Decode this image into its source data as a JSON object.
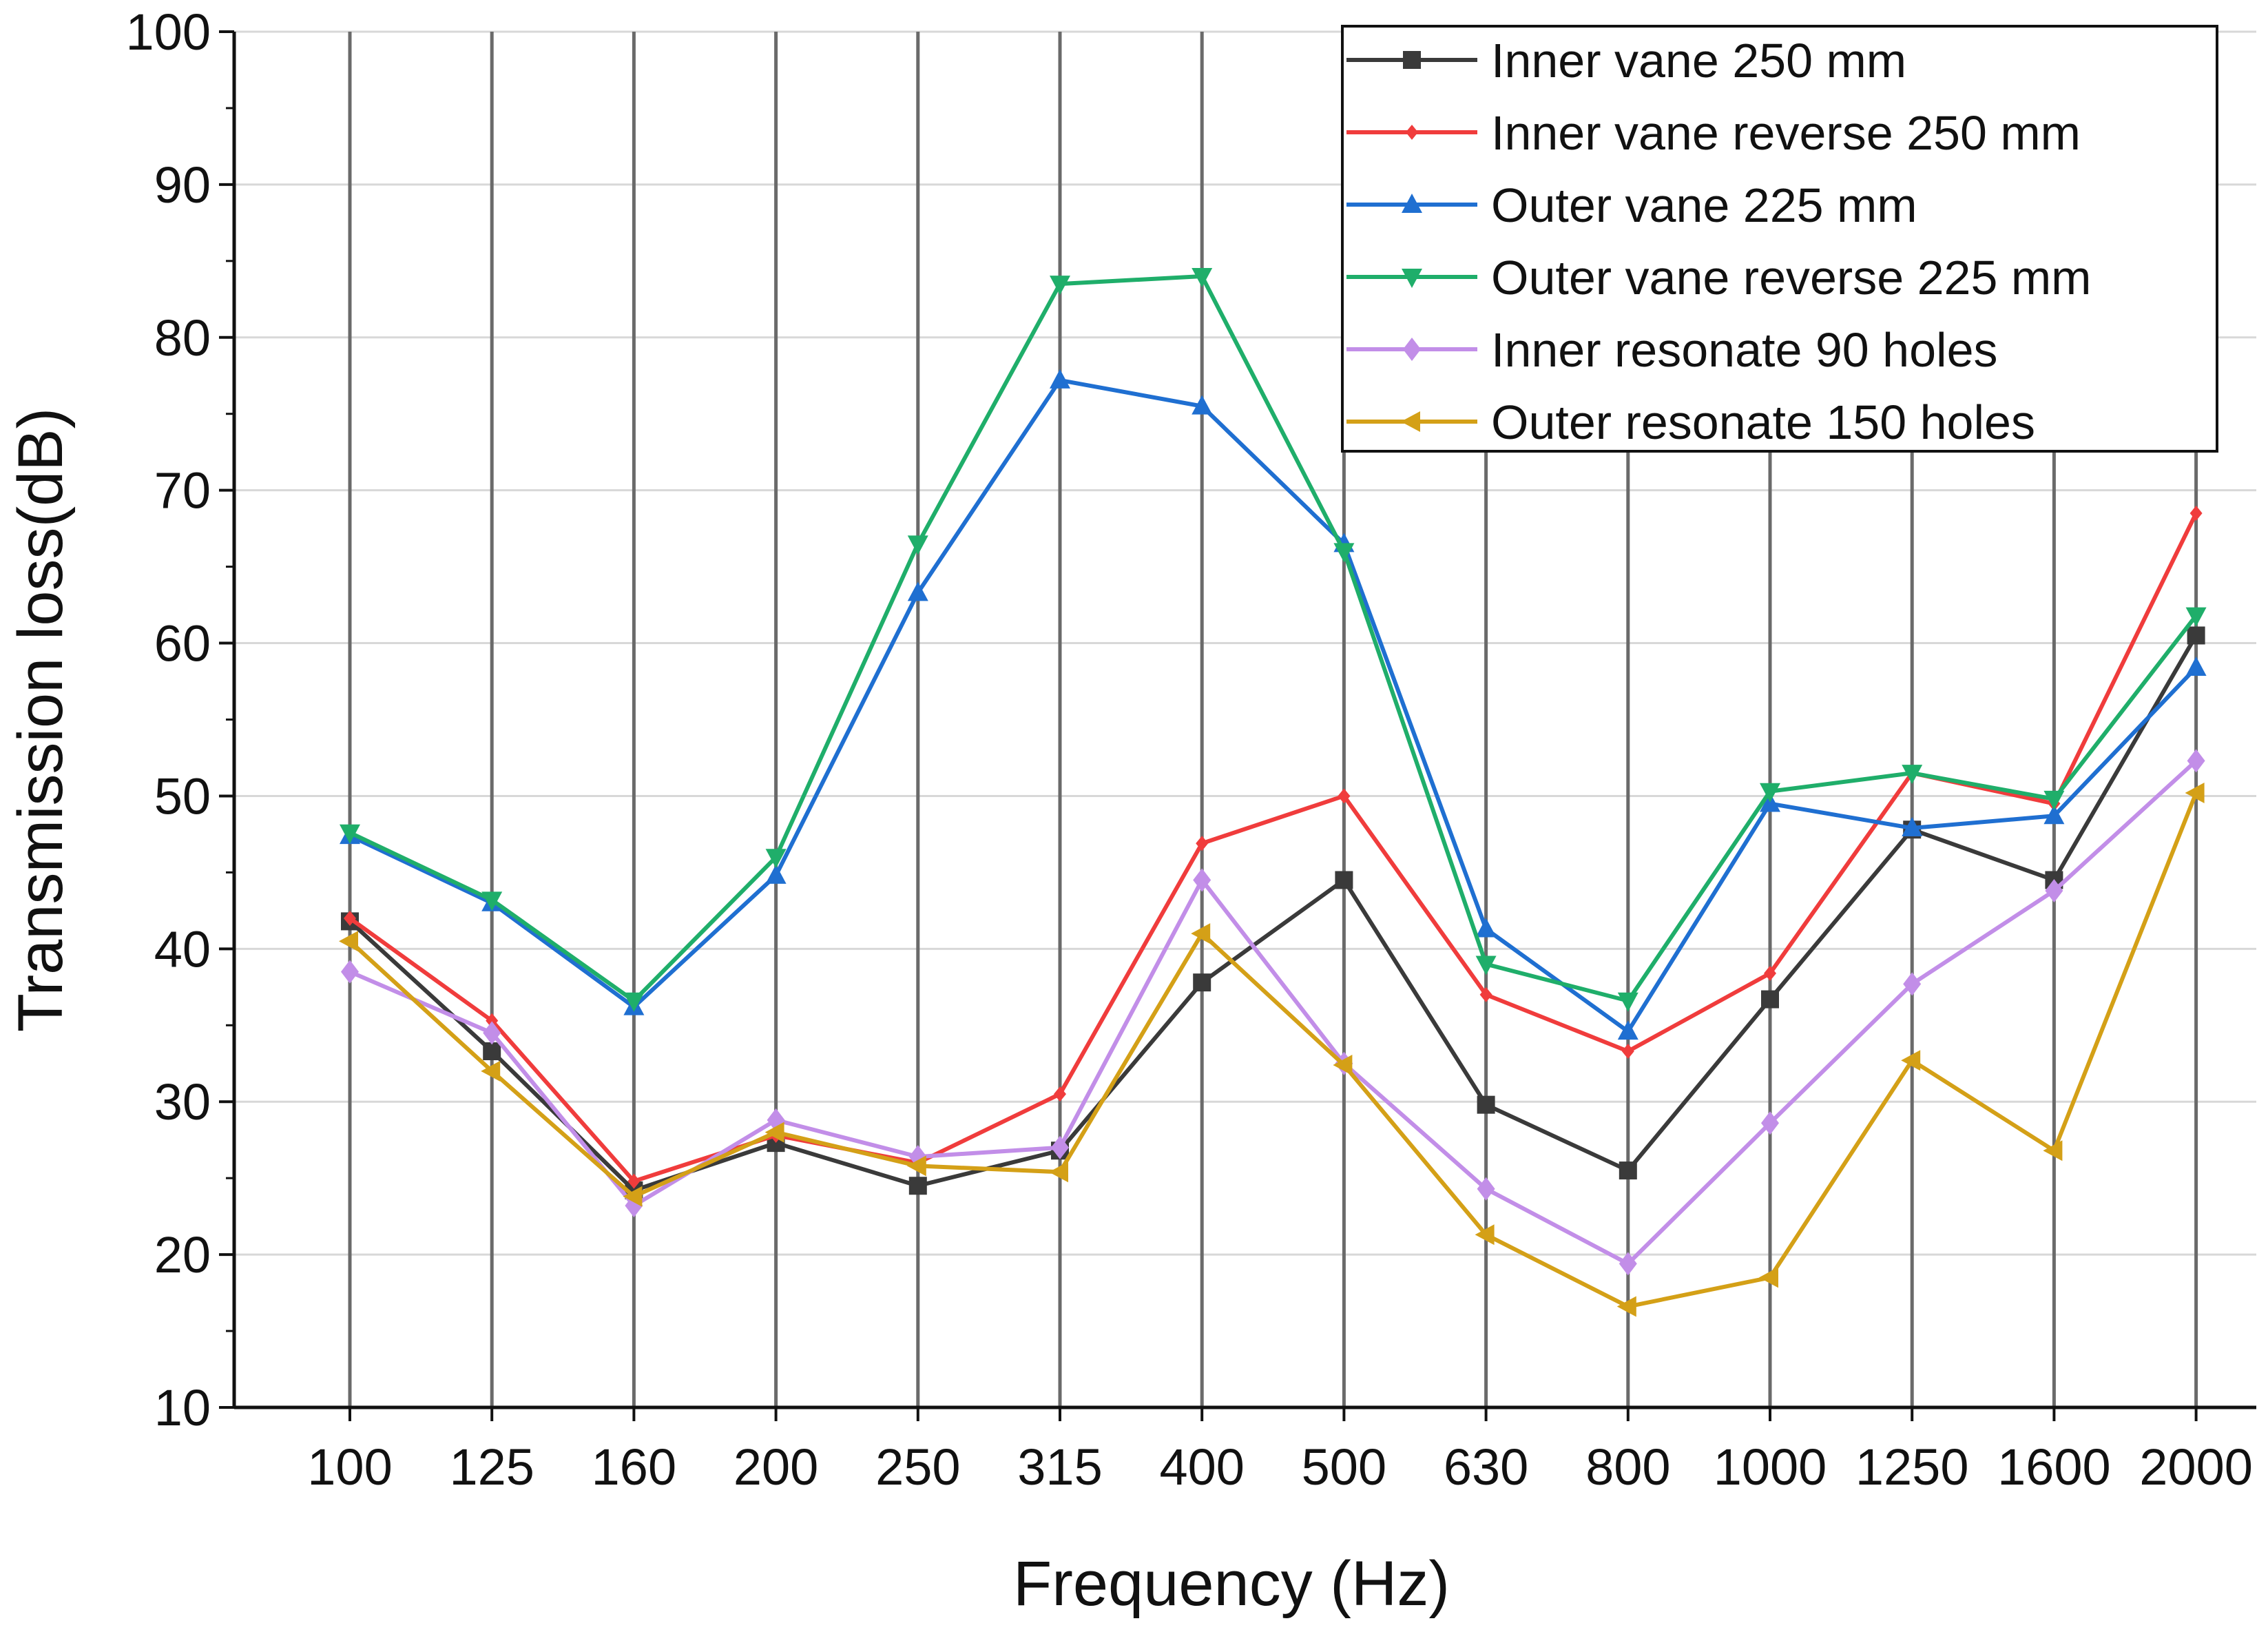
{
  "chart_data": {
    "type": "line",
    "title": "",
    "xlabel": "Frequency (Hz)",
    "ylabel": "Transmission loss(dB)",
    "ylim": [
      10,
      100
    ],
    "yticks": [
      "10",
      "20",
      "30",
      "40",
      "50",
      "60",
      "70",
      "80",
      "90",
      "100"
    ],
    "categories": [
      "100",
      "125",
      "160",
      "200",
      "250",
      "315",
      "400",
      "500",
      "630",
      "800",
      "1000",
      "1250",
      "1600",
      "2000"
    ],
    "grid": "vertical and horizontal",
    "legend_position": "top-right",
    "series": [
      {
        "name": "Inner vane 250 mm",
        "color": "#3a3a3a",
        "marker": "square",
        "values": [
          41.8,
          33.3,
          24.2,
          27.3,
          24.5,
          26.8,
          37.8,
          44.5,
          29.8,
          25.5,
          36.7,
          47.8,
          44.5,
          60.5
        ]
      },
      {
        "name": "Inner vane reverse 250 mm",
        "color": "#f03c3c",
        "marker": "diamond-small",
        "values": [
          42.0,
          35.3,
          24.8,
          27.8,
          26.0,
          30.5,
          46.9,
          50.0,
          37.0,
          33.3,
          38.4,
          51.5,
          49.5,
          68.5
        ]
      },
      {
        "name": "Outer vane 225 mm",
        "color": "#1f6fd1",
        "marker": "triangle-up",
        "values": [
          47.4,
          43.0,
          36.2,
          44.8,
          63.3,
          77.2,
          75.5,
          66.5,
          41.3,
          34.6,
          49.5,
          47.9,
          48.7,
          58.4
        ]
      },
      {
        "name": "Outer vane reverse 225 mm",
        "color": "#1fae6a",
        "marker": "triangle-down",
        "values": [
          47.6,
          43.2,
          36.6,
          46.0,
          66.5,
          83.5,
          84.0,
          66.0,
          39.0,
          36.6,
          50.3,
          51.5,
          49.8,
          61.8
        ]
      },
      {
        "name": "Inner resonate 90 holes",
        "color": "#c28ee8",
        "marker": "diamond",
        "values": [
          38.5,
          34.5,
          23.2,
          28.8,
          26.4,
          27.0,
          44.5,
          32.5,
          24.3,
          19.4,
          28.6,
          37.7,
          43.8,
          52.3
        ]
      },
      {
        "name": "Outer resonate 150 holes",
        "color": "#d4a017",
        "marker": "triangle-left",
        "values": [
          40.5,
          32.0,
          23.8,
          28.0,
          25.8,
          25.4,
          41.0,
          32.4,
          21.3,
          16.6,
          18.5,
          32.7,
          26.8,
          50.2
        ]
      }
    ]
  }
}
